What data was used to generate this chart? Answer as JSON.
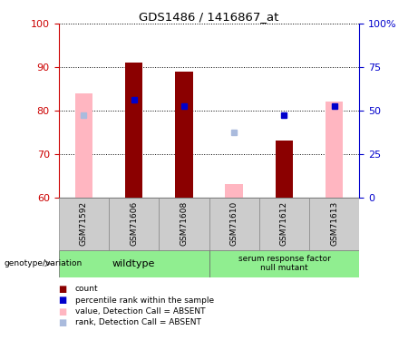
{
  "title": "GDS1486 / 1416867_at",
  "samples": [
    "GSM71592",
    "GSM71606",
    "GSM71608",
    "GSM71610",
    "GSM71612",
    "GSM71613"
  ],
  "ylim": [
    60,
    100
  ],
  "yticks": [
    60,
    70,
    80,
    90,
    100
  ],
  "y2lim": [
    0,
    100
  ],
  "y2ticks": [
    0,
    25,
    50,
    75,
    100
  ],
  "y2ticklabels": [
    "0",
    "25",
    "50",
    "75",
    "100%"
  ],
  "bar_colors": {
    "present_dark": "#8B0000",
    "absent_pink": "#FFB6C1",
    "absent_rank": "#AABBDD"
  },
  "counts": [
    null,
    91.0,
    89.0,
    null,
    73.0,
    null
  ],
  "counts_absent": [
    84.0,
    null,
    null,
    63.0,
    null,
    82.0
  ],
  "percentile_present": [
    null,
    82.5,
    81.0,
    null,
    79.0,
    81.0
  ],
  "percentile_absent": [
    79.0,
    null,
    null,
    75.0,
    null,
    null
  ],
  "wildtype_samples": [
    0,
    1,
    2
  ],
  "mutant_samples": [
    3,
    4,
    5
  ],
  "left_color": "#CC0000",
  "right_color": "#0000CC",
  "bar_width": 0.35,
  "legend_items": [
    {
      "color": "#8B0000",
      "label": "count"
    },
    {
      "color": "#0000CC",
      "label": "percentile rank within the sample"
    },
    {
      "color": "#FFB6C1",
      "label": "value, Detection Call = ABSENT"
    },
    {
      "color": "#AABBDD",
      "label": "rank, Detection Call = ABSENT"
    }
  ]
}
